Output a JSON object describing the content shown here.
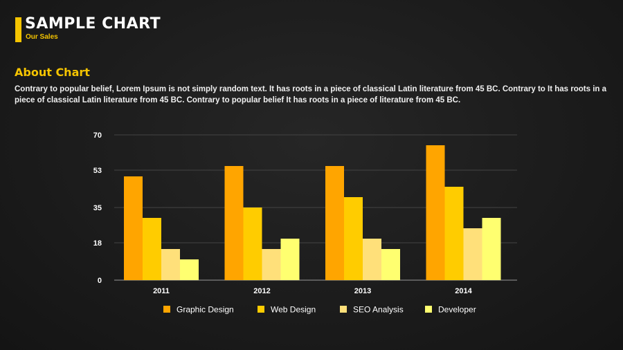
{
  "header": {
    "title": "SAMPLE CHART",
    "subtitle": "Our Sales"
  },
  "about": {
    "heading": "About Chart",
    "text": "Contrary to popular belief, Lorem Ipsum is not simply random text. It has roots in a piece of classical Latin literature from 45 BC. Contrary to It has roots in a piece of classical Latin literature from 45 BC. Contrary to popular belief It has roots in a piece of literature from 45 BC."
  },
  "chart_data": {
    "type": "bar",
    "title": "",
    "xlabel": "",
    "ylabel": "",
    "categories": [
      "2011",
      "2012",
      "2013",
      "2014"
    ],
    "yticks": [
      "0",
      "18",
      "35",
      "53",
      "70"
    ],
    "ylim": [
      0,
      70
    ],
    "grid": true,
    "legend_position": "bottom",
    "series": [
      {
        "name": "Graphic Design",
        "color": "#ffa500",
        "values": [
          50,
          55,
          55,
          65
        ]
      },
      {
        "name": "Web Design",
        "color": "#ffcc00",
        "values": [
          30,
          35,
          40,
          45
        ]
      },
      {
        "name": "SEO Analysis",
        "color": "#ffe07a",
        "values": [
          15,
          15,
          20,
          25
        ]
      },
      {
        "name": "Developer",
        "color": "#ffff70",
        "values": [
          10,
          20,
          15,
          30
        ]
      }
    ]
  }
}
